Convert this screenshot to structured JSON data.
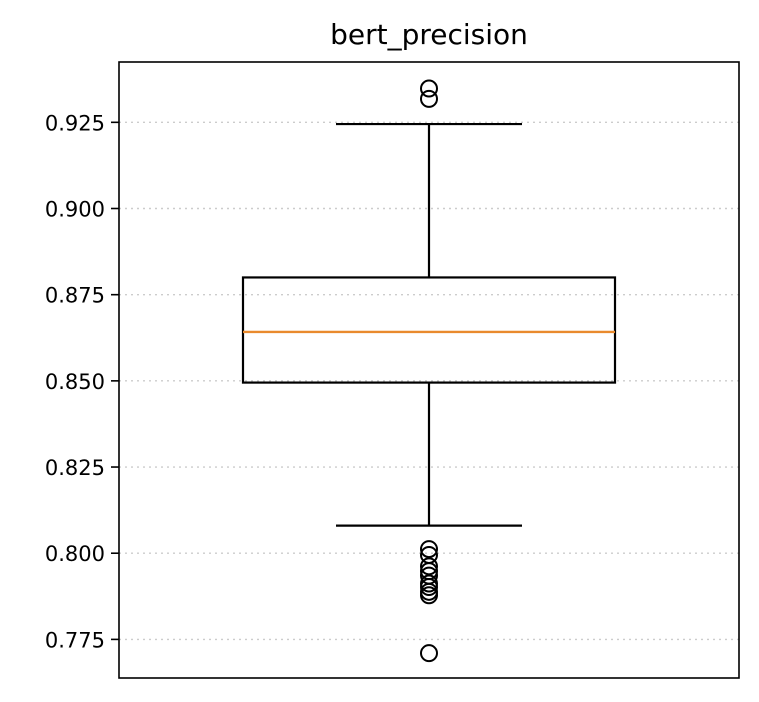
{
  "chart_data": {
    "type": "box",
    "title": "bert_precision",
    "xlabel": "",
    "ylabel": "",
    "ylim": [
      0.7638,
      0.9425
    ],
    "yticks": [
      0.775,
      0.8,
      0.825,
      0.85,
      0.875,
      0.9,
      0.925
    ],
    "ytick_labels": [
      "0.775",
      "0.800",
      "0.825",
      "0.850",
      "0.875",
      "0.900",
      "0.925"
    ],
    "grid": "y-dotted",
    "box": {
      "whisker_low": 0.808,
      "q1": 0.8495,
      "median": 0.8642,
      "q3": 0.88,
      "whisker_high": 0.9245
    },
    "outliers": [
      0.9348,
      0.9318,
      0.8012,
      0.7995,
      0.7962,
      0.7948,
      0.7935,
      0.7912,
      0.7902,
      0.7888,
      0.7878,
      0.771
    ],
    "colors": {
      "box": "#000000",
      "median": "#e98a2d",
      "grid": "#cccccc"
    }
  }
}
